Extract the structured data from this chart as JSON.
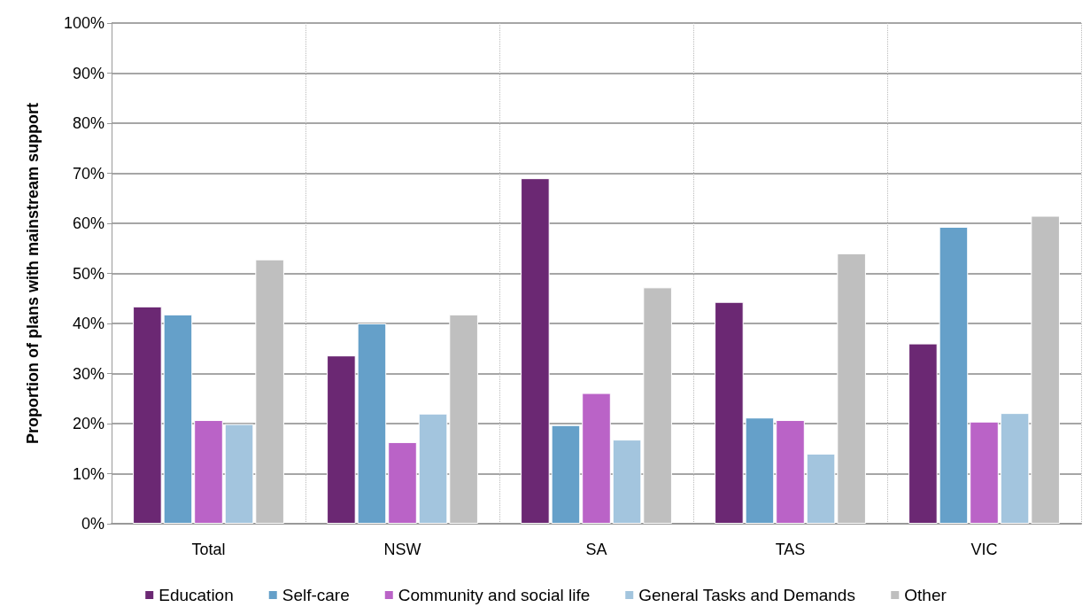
{
  "chart_data": {
    "type": "bar",
    "ylabel": "Proportion of plans with mainstream support",
    "categories": [
      "Total",
      "NSW",
      "SA",
      "TAS",
      "VIC"
    ],
    "series": [
      {
        "name": "Education",
        "color": "#6b2873",
        "values": [
          43.4,
          33.6,
          69.0,
          44.3,
          36.0
        ]
      },
      {
        "name": "Self-care",
        "color": "#65a0c9",
        "values": [
          41.8,
          40.0,
          19.7,
          21.2,
          59.3
        ]
      },
      {
        "name": "Community and social life",
        "color": "#ba63c7",
        "values": [
          20.7,
          16.3,
          26.1,
          20.7,
          20.4
        ]
      },
      {
        "name": "General Tasks and Demands",
        "color": "#a3c5de",
        "values": [
          19.9,
          22.0,
          16.8,
          14.0,
          22.1
        ]
      },
      {
        "name": "Other",
        "color": "#bfbfbf",
        "values": [
          52.8,
          41.8,
          47.2,
          54.0,
          61.5
        ]
      }
    ],
    "ylim": [
      0,
      100
    ],
    "yticks": [
      {
        "value": 0,
        "label": "0%"
      },
      {
        "value": 10,
        "label": "10%"
      },
      {
        "value": 20,
        "label": "20%"
      },
      {
        "value": 30,
        "label": "30%"
      },
      {
        "value": 40,
        "label": "40%"
      },
      {
        "value": 50,
        "label": "50%"
      },
      {
        "value": 60,
        "label": "60%"
      },
      {
        "value": 70,
        "label": "70%"
      },
      {
        "value": 80,
        "label": "80%"
      },
      {
        "value": 90,
        "label": "90%"
      },
      {
        "value": 100,
        "label": "100%"
      }
    ],
    "grid": true,
    "legend": "bottom"
  }
}
